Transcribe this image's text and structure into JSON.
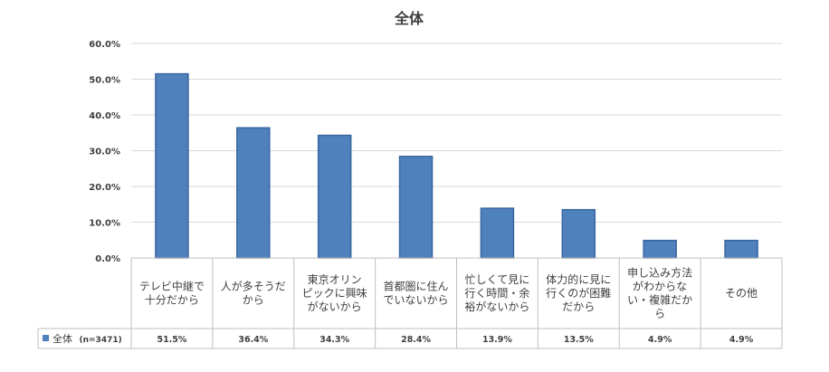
{
  "chart_data": {
    "type": "bar",
    "title": "全体",
    "categories": [
      [
        "テレビ中継で",
        "十分だから"
      ],
      [
        "人が多そうだ",
        "から"
      ],
      [
        "東京オリン",
        "ピックに興味",
        "がないから"
      ],
      [
        "首都圏に住ん",
        "でいないから"
      ],
      [
        "忙しくて見に",
        "行く時間・余",
        "裕がないから"
      ],
      [
        "体力的に見に",
        "行くのが困難",
        "だから"
      ],
      [
        "申し込み方法",
        "がわからな",
        "い・複雑だか",
        "ら"
      ],
      [
        "その他"
      ]
    ],
    "series": [
      {
        "name": "全体",
        "name_suffix": "(n=3471)",
        "values": [
          51.5,
          36.4,
          34.3,
          28.4,
          13.9,
          13.5,
          4.9,
          4.9
        ],
        "value_labels": [
          "51.5%",
          "36.4%",
          "34.3%",
          "28.4%",
          "13.9%",
          "13.5%",
          "4.9%",
          "4.9%"
        ]
      }
    ],
    "ylim": [
      0,
      60
    ],
    "yticks": [
      "0.0%",
      "10.0%",
      "20.0%",
      "30.0%",
      "40.0%",
      "50.0%",
      "60.0%"
    ],
    "grid": true,
    "legend": "bottom-left data table",
    "colors": {
      "bar": "#4f81bd",
      "bar_edge": "#3a66a0",
      "grid": "#d9d9d9"
    }
  }
}
